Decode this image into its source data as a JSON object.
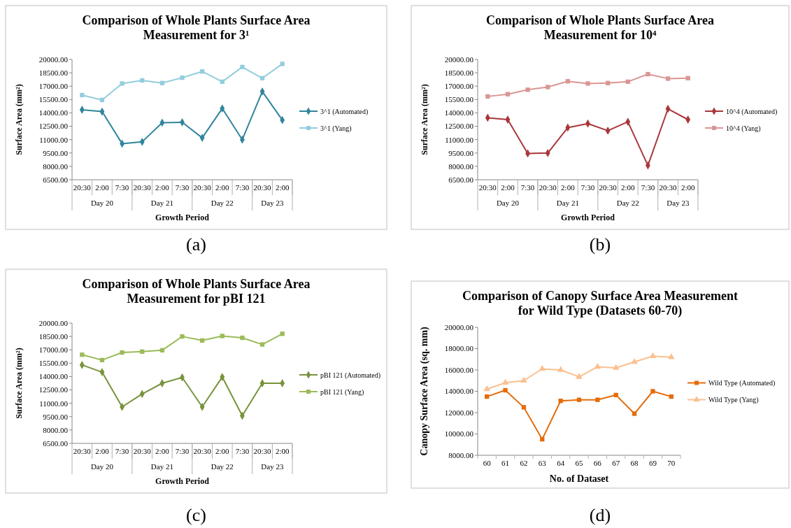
{
  "chart_data": [
    {
      "type": "line",
      "title": "Comparison of Whole Plants Surface Area Measurement for 3¹",
      "ylabel": "Surface Area (mm²)",
      "xlabel": "Growth Period",
      "categories": [
        "20:30",
        "2:00",
        "7:30",
        "20:30",
        "2:00",
        "7:30",
        "20:30",
        "2:00",
        "7:30",
        "20:30",
        "2:00"
      ],
      "annotations": [
        "Day 20",
        "Day 21",
        "Day 22",
        "Day 23",
        "(a)"
      ],
      "legend": "right",
      "ylim": [
        6500,
        20000
      ],
      "yticks": [
        {
          "value": 6500,
          "label": "6500.00"
        },
        {
          "value": 8000,
          "label": "8000.00"
        },
        {
          "value": 9500,
          "label": "9500.00"
        },
        {
          "value": 11000,
          "label": "11000.00"
        },
        {
          "value": 12500,
          "label": "12500.00"
        },
        {
          "value": 14000,
          "label": "14000.00"
        },
        {
          "value": 15500,
          "label": "15500.00"
        },
        {
          "value": 17000,
          "label": "17000.00"
        },
        {
          "value": 18500,
          "label": "18500.00"
        },
        {
          "value": 20000,
          "label": "20000.00"
        }
      ],
      "series": [
        {
          "name": "3^1 (Automated)",
          "color": "#31859c",
          "marker": "diamond",
          "values": [
            14350,
            14150,
            10550,
            10750,
            12900,
            12950,
            11200,
            14500,
            11000,
            16400,
            13200
          ]
        },
        {
          "name": "3^1 (Yang)",
          "color": "#93cddd",
          "marker": "square",
          "values": [
            16000,
            15450,
            17300,
            17650,
            17350,
            17950,
            18650,
            17500,
            19150,
            17900,
            19500
          ]
        }
      ]
    },
    {
      "type": "line",
      "title": "Comparison of Whole Plants Surface Area Measurement for 10⁴",
      "ylabel": "Surface Area (mm²)",
      "xlabel": "Growth Period",
      "categories": [
        "20:30",
        "2:00",
        "7:30",
        "20:30",
        "2:00",
        "7:30",
        "20:30",
        "2:00",
        "7:30",
        "20:30",
        "2:00"
      ],
      "annotations": [
        "Day 20",
        "Day 21",
        "Day 22",
        "Day 23",
        "(b)"
      ],
      "legend": "right",
      "ylim": [
        6500,
        20000
      ],
      "yticks": [
        {
          "value": 6500,
          "label": "6500.00"
        },
        {
          "value": 8000,
          "label": "8000.00"
        },
        {
          "value": 9500,
          "label": "9500.00"
        },
        {
          "value": 11000,
          "label": "11000.00"
        },
        {
          "value": 12500,
          "label": "12500.00"
        },
        {
          "value": 14000,
          "label": "14000.00"
        },
        {
          "value": 15500,
          "label": "15500.00"
        },
        {
          "value": 17000,
          "label": "17000.00"
        },
        {
          "value": 18500,
          "label": "18500.00"
        },
        {
          "value": 20000,
          "label": "20000.00"
        }
      ],
      "series": [
        {
          "name": "10^4 (Automated)",
          "color": "#a9373b",
          "marker": "diamond",
          "values": [
            13450,
            13250,
            9450,
            9500,
            12350,
            12800,
            12000,
            13000,
            8100,
            14450,
            13250
          ]
        },
        {
          "name": "10^4 (Yang)",
          "color": "#d99694",
          "marker": "square",
          "values": [
            15850,
            16100,
            16600,
            16900,
            17550,
            17300,
            17350,
            17500,
            18350,
            17850,
            17900
          ]
        }
      ]
    },
    {
      "type": "line",
      "title": "Comparison of Whole Plants Surface Area Measurement for pBI 121",
      "ylabel": "Surface Area (mm²)",
      "xlabel": "Growth Period",
      "categories": [
        "20:30",
        "2:00",
        "7:30",
        "20:30",
        "2:00",
        "7:30",
        "20:30",
        "2:00",
        "7:30",
        "20:30",
        "2:00"
      ],
      "annotations": [
        "Day 20",
        "Day 21",
        "Day 22",
        "Day 23",
        "(c)"
      ],
      "legend": "right",
      "ylim": [
        6500,
        20000
      ],
      "yticks": [
        {
          "value": 6500,
          "label": "6500.00"
        },
        {
          "value": 8000,
          "label": "8000.00"
        },
        {
          "value": 9500,
          "label": "9500.00"
        },
        {
          "value": 11000,
          "label": "11000.00"
        },
        {
          "value": 12500,
          "label": "12500.00"
        },
        {
          "value": 14000,
          "label": "14000.00"
        },
        {
          "value": 15500,
          "label": "15500.00"
        },
        {
          "value": 17000,
          "label": "17000.00"
        },
        {
          "value": 18500,
          "label": "18500.00"
        },
        {
          "value": 20000,
          "label": "20000.00"
        }
      ],
      "series": [
        {
          "name": "pBI 121 (Automated)",
          "color": "#77933c",
          "marker": "diamond",
          "values": [
            15300,
            14500,
            10600,
            12050,
            13250,
            13900,
            10600,
            13950,
            9600,
            13250,
            13250
          ]
        },
        {
          "name": "pBI 121 (Yang)",
          "color": "#9bbb59",
          "marker": "square",
          "values": [
            16450,
            15850,
            16700,
            16800,
            16950,
            18500,
            18050,
            18550,
            18350,
            17600,
            18800
          ]
        }
      ]
    },
    {
      "type": "line",
      "title": "Comparison of Canopy Surface Area Measurement for Wild Type (Datasets 60-70)",
      "ylabel": "Canopy Surface Area (sq. mm)",
      "xlabel": "No. of Dataset",
      "categories": [
        "60",
        "61",
        "62",
        "63",
        "64",
        "65",
        "66",
        "67",
        "68",
        "69",
        "70"
      ],
      "annotations": [
        "(d)"
      ],
      "legend": "right",
      "ylim": [
        8000,
        20000
      ],
      "yticks": [
        {
          "value": 8000,
          "label": "8000.00"
        },
        {
          "value": 10000,
          "label": "10000.00"
        },
        {
          "value": 12000,
          "label": "12000.00"
        },
        {
          "value": 14000,
          "label": "14000.00"
        },
        {
          "value": 16000,
          "label": "16000.00"
        },
        {
          "value": 18000,
          "label": "18000.00"
        },
        {
          "value": 20000,
          "label": "20000.00"
        }
      ],
      "series": [
        {
          "name": "Wild Type (Automated)",
          "color": "#e46c0a",
          "marker": "square",
          "values": [
            13500,
            14100,
            12500,
            9500,
            13100,
            13200,
            13200,
            13650,
            11900,
            14000,
            13500
          ]
        },
        {
          "name": "Wild Type (Yang)",
          "color": "#fac090",
          "marker": "triangle",
          "values": [
            14200,
            14800,
            15000,
            16100,
            16000,
            15350,
            16300,
            16200,
            16750,
            17300,
            17200
          ]
        }
      ]
    }
  ]
}
